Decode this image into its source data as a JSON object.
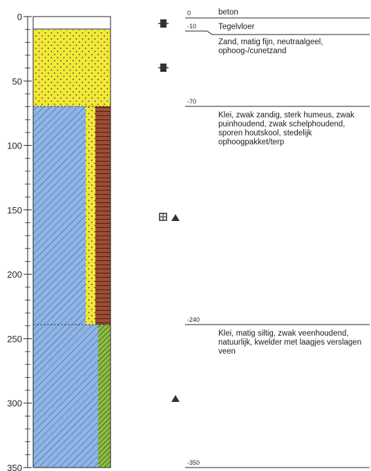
{
  "depth_axis": {
    "ticks": [
      "0",
      "50",
      "100",
      "150",
      "200",
      "250",
      "300",
      "350"
    ]
  },
  "layers": [
    {
      "depth_label": "0",
      "name": "beton",
      "description": ""
    },
    {
      "depth_label": "-10",
      "name": "Tegelvloer",
      "description": ""
    },
    {
      "depth_label": "",
      "name": "",
      "description": "Zand, matig fijn, neutraalgeel, ophoog-/cunetzand"
    },
    {
      "depth_label": "-70",
      "name": "",
      "description": "Klei, zwak zandig, sterk humeus, zwak puinhoudend, zwak schelphoudend, sporen houtskool, stedelijk ophoogpakket/terp"
    },
    {
      "depth_label": "-240",
      "name": "",
      "description": "Klei, matig siltig, zwak veenhoudend, natuurlijk, kwelder met laagjes verslagen veen"
    },
    {
      "depth_label": "-350",
      "name": "",
      "description": ""
    }
  ],
  "colors": {
    "sand": "#f2e838",
    "clay": "#8fb4e6",
    "brick": "#9a4e33",
    "peat": "#8cbd45"
  },
  "sample_markers": [
    "sample-jar-icon",
    "sample-jar-icon",
    "open-sample-icon",
    "triangle-icon",
    "triangle-icon"
  ]
}
